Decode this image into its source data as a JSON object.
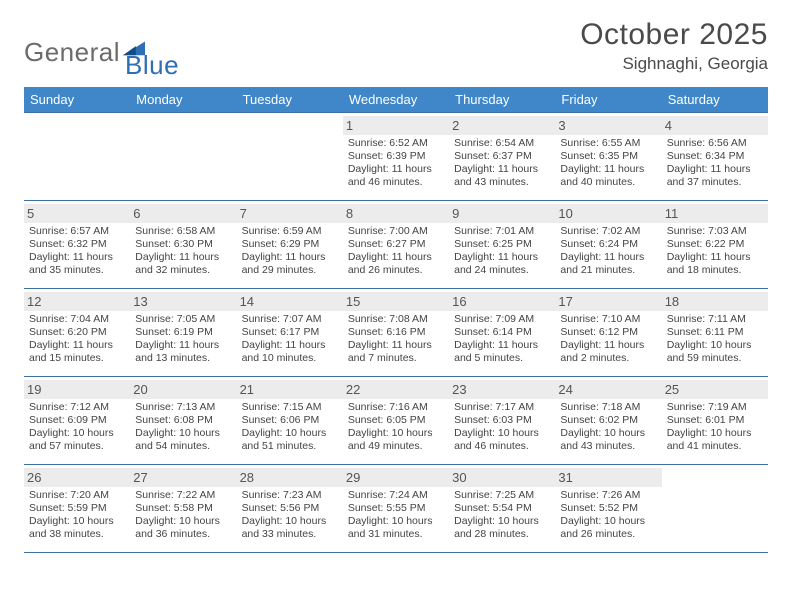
{
  "logo": {
    "word1": "General",
    "word2": "Blue",
    "accent": "#2e6fb5",
    "grey": "#6b6b6b"
  },
  "title": "October 2025",
  "location": "Sighnaghi, Georgia",
  "colors": {
    "header_bg": "#3f87c8",
    "header_text": "#ffffff",
    "row_border": "#3f6fa0",
    "daynum_bg": "#ececec",
    "text": "#444444"
  },
  "day_headers": [
    "Sunday",
    "Monday",
    "Tuesday",
    "Wednesday",
    "Thursday",
    "Friday",
    "Saturday"
  ],
  "weeks": [
    [
      null,
      null,
      null,
      {
        "n": "1",
        "sunrise": "6:52 AM",
        "sunset": "6:39 PM",
        "day_h": 11,
        "day_m": 46
      },
      {
        "n": "2",
        "sunrise": "6:54 AM",
        "sunset": "6:37 PM",
        "day_h": 11,
        "day_m": 43
      },
      {
        "n": "3",
        "sunrise": "6:55 AM",
        "sunset": "6:35 PM",
        "day_h": 11,
        "day_m": 40
      },
      {
        "n": "4",
        "sunrise": "6:56 AM",
        "sunset": "6:34 PM",
        "day_h": 11,
        "day_m": 37
      }
    ],
    [
      {
        "n": "5",
        "sunrise": "6:57 AM",
        "sunset": "6:32 PM",
        "day_h": 11,
        "day_m": 35
      },
      {
        "n": "6",
        "sunrise": "6:58 AM",
        "sunset": "6:30 PM",
        "day_h": 11,
        "day_m": 32
      },
      {
        "n": "7",
        "sunrise": "6:59 AM",
        "sunset": "6:29 PM",
        "day_h": 11,
        "day_m": 29
      },
      {
        "n": "8",
        "sunrise": "7:00 AM",
        "sunset": "6:27 PM",
        "day_h": 11,
        "day_m": 26
      },
      {
        "n": "9",
        "sunrise": "7:01 AM",
        "sunset": "6:25 PM",
        "day_h": 11,
        "day_m": 24
      },
      {
        "n": "10",
        "sunrise": "7:02 AM",
        "sunset": "6:24 PM",
        "day_h": 11,
        "day_m": 21
      },
      {
        "n": "11",
        "sunrise": "7:03 AM",
        "sunset": "6:22 PM",
        "day_h": 11,
        "day_m": 18
      }
    ],
    [
      {
        "n": "12",
        "sunrise": "7:04 AM",
        "sunset": "6:20 PM",
        "day_h": 11,
        "day_m": 15
      },
      {
        "n": "13",
        "sunrise": "7:05 AM",
        "sunset": "6:19 PM",
        "day_h": 11,
        "day_m": 13
      },
      {
        "n": "14",
        "sunrise": "7:07 AM",
        "sunset": "6:17 PM",
        "day_h": 11,
        "day_m": 10
      },
      {
        "n": "15",
        "sunrise": "7:08 AM",
        "sunset": "6:16 PM",
        "day_h": 11,
        "day_m": 7
      },
      {
        "n": "16",
        "sunrise": "7:09 AM",
        "sunset": "6:14 PM",
        "day_h": 11,
        "day_m": 5
      },
      {
        "n": "17",
        "sunrise": "7:10 AM",
        "sunset": "6:12 PM",
        "day_h": 11,
        "day_m": 2
      },
      {
        "n": "18",
        "sunrise": "7:11 AM",
        "sunset": "6:11 PM",
        "day_h": 10,
        "day_m": 59
      }
    ],
    [
      {
        "n": "19",
        "sunrise": "7:12 AM",
        "sunset": "6:09 PM",
        "day_h": 10,
        "day_m": 57
      },
      {
        "n": "20",
        "sunrise": "7:13 AM",
        "sunset": "6:08 PM",
        "day_h": 10,
        "day_m": 54
      },
      {
        "n": "21",
        "sunrise": "7:15 AM",
        "sunset": "6:06 PM",
        "day_h": 10,
        "day_m": 51
      },
      {
        "n": "22",
        "sunrise": "7:16 AM",
        "sunset": "6:05 PM",
        "day_h": 10,
        "day_m": 49
      },
      {
        "n": "23",
        "sunrise": "7:17 AM",
        "sunset": "6:03 PM",
        "day_h": 10,
        "day_m": 46
      },
      {
        "n": "24",
        "sunrise": "7:18 AM",
        "sunset": "6:02 PM",
        "day_h": 10,
        "day_m": 43
      },
      {
        "n": "25",
        "sunrise": "7:19 AM",
        "sunset": "6:01 PM",
        "day_h": 10,
        "day_m": 41
      }
    ],
    [
      {
        "n": "26",
        "sunrise": "7:20 AM",
        "sunset": "5:59 PM",
        "day_h": 10,
        "day_m": 38
      },
      {
        "n": "27",
        "sunrise": "7:22 AM",
        "sunset": "5:58 PM",
        "day_h": 10,
        "day_m": 36
      },
      {
        "n": "28",
        "sunrise": "7:23 AM",
        "sunset": "5:56 PM",
        "day_h": 10,
        "day_m": 33
      },
      {
        "n": "29",
        "sunrise": "7:24 AM",
        "sunset": "5:55 PM",
        "day_h": 10,
        "day_m": 31
      },
      {
        "n": "30",
        "sunrise": "7:25 AM",
        "sunset": "5:54 PM",
        "day_h": 10,
        "day_m": 28
      },
      {
        "n": "31",
        "sunrise": "7:26 AM",
        "sunset": "5:52 PM",
        "day_h": 10,
        "day_m": 26
      },
      null
    ]
  ],
  "labels": {
    "sunrise": "Sunrise:",
    "sunset": "Sunset:",
    "daylight_prefix": "Daylight:",
    "hours_word": "hours",
    "and_word": "and",
    "minutes_word": "minutes."
  }
}
